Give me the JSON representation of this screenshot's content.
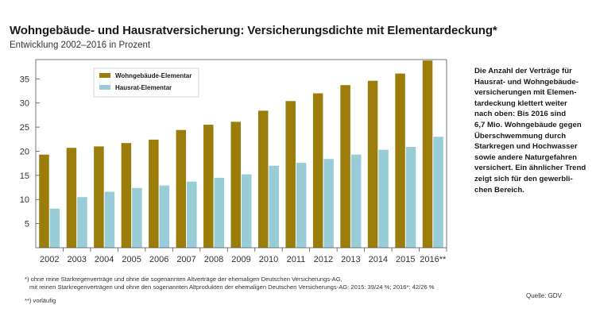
{
  "header": {
    "title": "Wohngebäude- und Hausratversicherung: Versicherungsdichte mit Elementardeckung*",
    "subtitle": "Entwicklung 2002–2016 in Prozent"
  },
  "side_note": "Die Anzahl der Verträge für\nHausrat- und Wohngebäude-\nversicherungen mit Elemen-\ntardeckung klettert weiter\nnach oben: Bis 2016 sind\n6,7 Mio. Wohngebäude gegen\nÜberschwemmung durch\nStarkregen und Hochwasser\nsowie andere Naturgefahren\nversichert. Ein ähnlicher Trend\nzeigt sich für den gewerbli-\nchen Bereich.",
  "footnotes": {
    "line1": "*) ohne reine Starkregenverträge und ohne die sogenannten Altverträge der ehemaligen Deutschen Versicherungs-AG,",
    "line2": "mit reinen Starkregenverträgen und ohne den sogenannten Altprodukten der ehemaligen Deutschen Versicherungs-AG: 2015: 39/24 %; 2016*: 42/26 %",
    "line3": "**) vorläufig"
  },
  "source": "Quelle: GDV",
  "colors": {
    "wohngebaeude": "#9a7d0a",
    "hausrat": "#98cdd8",
    "frame": "#555555"
  },
  "chart_data": {
    "type": "bar",
    "categories": [
      "2002",
      "2003",
      "2004",
      "2005",
      "2006",
      "2007",
      "2008",
      "2009",
      "2010",
      "2011",
      "2012",
      "2013",
      "2014",
      "2015",
      "2016**"
    ],
    "series": [
      {
        "name": "Wohngebäude-Elementar",
        "values": [
          19.3,
          20.7,
          21.0,
          21.7,
          22.4,
          24.4,
          25.5,
          26.1,
          28.4,
          30.4,
          32.0,
          33.7,
          34.6,
          36.1,
          38.8
        ]
      },
      {
        "name": "Hausrat-Elementar",
        "values": [
          8.1,
          10.5,
          11.6,
          12.4,
          12.9,
          13.7,
          14.5,
          15.2,
          17.0,
          17.6,
          18.4,
          19.3,
          20.3,
          20.9,
          23.0
        ]
      }
    ],
    "yticks": [
      5,
      10,
      15,
      20,
      25,
      30,
      35
    ],
    "ylim": [
      0,
      39
    ],
    "legend_position": "top-left",
    "grid": false
  }
}
